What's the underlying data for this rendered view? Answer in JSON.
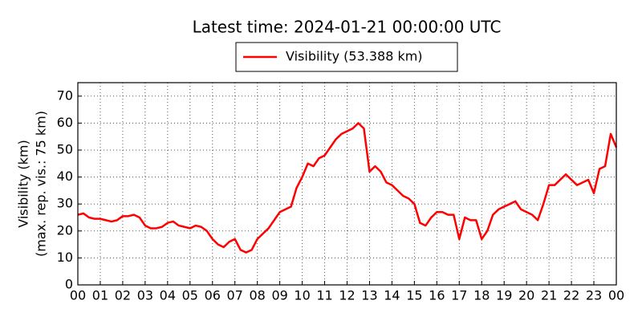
{
  "chart_data": {
    "type": "line",
    "title": "Latest time: 2024-01-21 00:00:00 UTC",
    "ylabel": [
      "Visibility (km)",
      "(max. rep. vis.: 75 km)"
    ],
    "x": [
      0,
      0.25,
      0.5,
      0.75,
      1,
      1.25,
      1.5,
      1.75,
      2,
      2.25,
      2.5,
      2.75,
      3,
      3.25,
      3.5,
      3.75,
      4,
      4.25,
      4.5,
      4.75,
      5,
      5.25,
      5.5,
      5.75,
      6,
      6.25,
      6.5,
      6.75,
      7,
      7.25,
      7.5,
      7.75,
      8,
      8.25,
      8.5,
      8.75,
      9,
      9.25,
      9.5,
      9.75,
      10,
      10.25,
      10.5,
      10.75,
      11,
      11.25,
      11.5,
      11.75,
      12,
      12.25,
      12.5,
      12.75,
      13,
      13.25,
      13.5,
      13.75,
      14,
      14.25,
      14.5,
      14.75,
      15,
      15.25,
      15.5,
      15.75,
      16,
      16.25,
      16.5,
      16.75,
      17,
      17.25,
      17.5,
      17.75,
      18,
      18.25,
      18.5,
      18.75,
      19,
      19.25,
      19.5,
      19.75,
      20,
      20.25,
      20.5,
      20.75,
      21,
      21.25,
      21.5,
      21.75,
      22,
      22.25,
      22.5,
      22.75,
      23,
      23.25,
      23.5,
      23.75,
      24
    ],
    "series": [
      {
        "name": "Visibility (53.388 km)",
        "color": "#ff0000",
        "values": [
          26,
          26.5,
          25,
          24.5,
          24.5,
          24,
          23.5,
          24,
          25.5,
          25.5,
          26,
          25,
          22,
          21,
          21,
          21.5,
          23,
          23.5,
          22,
          21.5,
          21,
          22,
          21.5,
          20,
          17,
          15,
          14,
          16,
          17,
          13,
          12,
          13,
          17,
          19,
          21,
          24,
          27,
          28,
          29,
          36,
          40,
          45,
          44,
          47,
          48,
          51,
          54,
          56,
          57,
          58,
          60,
          58,
          42,
          44,
          42,
          38,
          37,
          35,
          33,
          32,
          30,
          23,
          22,
          25,
          27,
          27,
          26,
          26,
          17,
          25,
          24,
          24,
          17,
          20,
          26,
          28,
          29,
          30,
          31,
          28,
          27,
          26,
          24,
          30,
          37,
          37,
          39,
          41,
          39,
          37,
          38,
          39,
          34,
          43,
          44,
          56,
          51
        ]
      }
    ],
    "xlim": [
      0,
      24
    ],
    "xticks": [
      {
        "value": 0,
        "label": "00"
      },
      {
        "value": 1,
        "label": "01"
      },
      {
        "value": 2,
        "label": "02"
      },
      {
        "value": 3,
        "label": "03"
      },
      {
        "value": 4,
        "label": "04"
      },
      {
        "value": 5,
        "label": "05"
      },
      {
        "value": 6,
        "label": "06"
      },
      {
        "value": 7,
        "label": "07"
      },
      {
        "value": 8,
        "label": "08"
      },
      {
        "value": 9,
        "label": "09"
      },
      {
        "value": 10,
        "label": "10"
      },
      {
        "value": 11,
        "label": "11"
      },
      {
        "value": 12,
        "label": "12"
      },
      {
        "value": 13,
        "label": "13"
      },
      {
        "value": 14,
        "label": "14"
      },
      {
        "value": 15,
        "label": "15"
      },
      {
        "value": 16,
        "label": "16"
      },
      {
        "value": 17,
        "label": "17"
      },
      {
        "value": 18,
        "label": "18"
      },
      {
        "value": 19,
        "label": "19"
      },
      {
        "value": 20,
        "label": "20"
      },
      {
        "value": 21,
        "label": "21"
      },
      {
        "value": 22,
        "label": "22"
      },
      {
        "value": 23,
        "label": "23"
      },
      {
        "value": 24,
        "label": "00"
      }
    ],
    "ylim": [
      0,
      75
    ],
    "yticks": [
      0,
      10,
      20,
      30,
      40,
      50,
      60,
      70
    ],
    "grid": true
  }
}
